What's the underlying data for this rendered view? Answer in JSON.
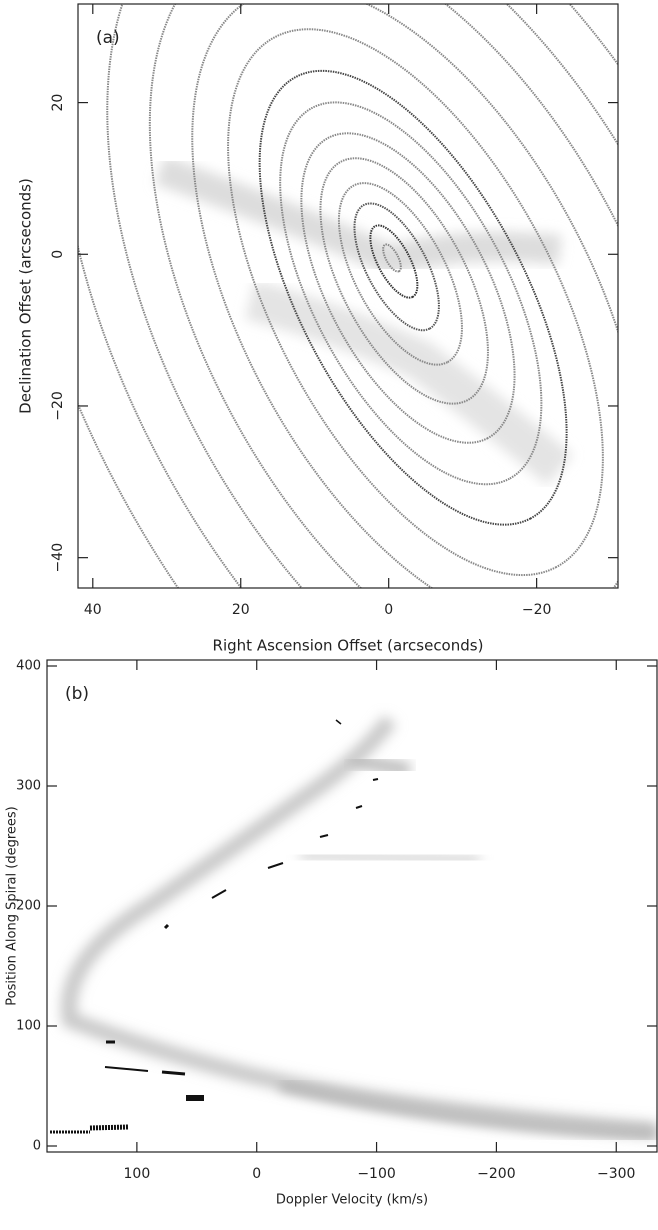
{
  "chart_data": [
    {
      "type": "image",
      "panel_label": "(a)",
      "x_label": "Right Ascension Offset (arcseconds)",
      "y_label": "Declination Offset (arcseconds)",
      "xlim": [
        42,
        -31
      ],
      "ylim": [
        -44,
        33
      ],
      "xticks": [
        40,
        20,
        0,
        {
          "value": -20,
          "label": "−20"
        }
      ],
      "yticks": [
        20,
        0,
        {
          "value": -20,
          "label": "−20"
        },
        {
          "value": -40,
          "label": "−40"
        }
      ],
      "y_label_rotated": true
    },
    {
      "type": "image",
      "panel_label": "(b)",
      "x_label": "Doppler Velocity (km/s)",
      "y_label": "Position Along Spiral (degrees)",
      "xlim": [
        175,
        -334
      ],
      "ylim": [
        -5,
        405
      ],
      "xticks": [
        100,
        0,
        {
          "value": -100,
          "label": "−100"
        },
        {
          "value": -200,
          "label": "−200"
        },
        {
          "value": -300,
          "label": "−300"
        }
      ],
      "yticks": [
        0,
        100,
        200,
        300,
        400
      ],
      "y_label_rotated": false
    }
  ]
}
